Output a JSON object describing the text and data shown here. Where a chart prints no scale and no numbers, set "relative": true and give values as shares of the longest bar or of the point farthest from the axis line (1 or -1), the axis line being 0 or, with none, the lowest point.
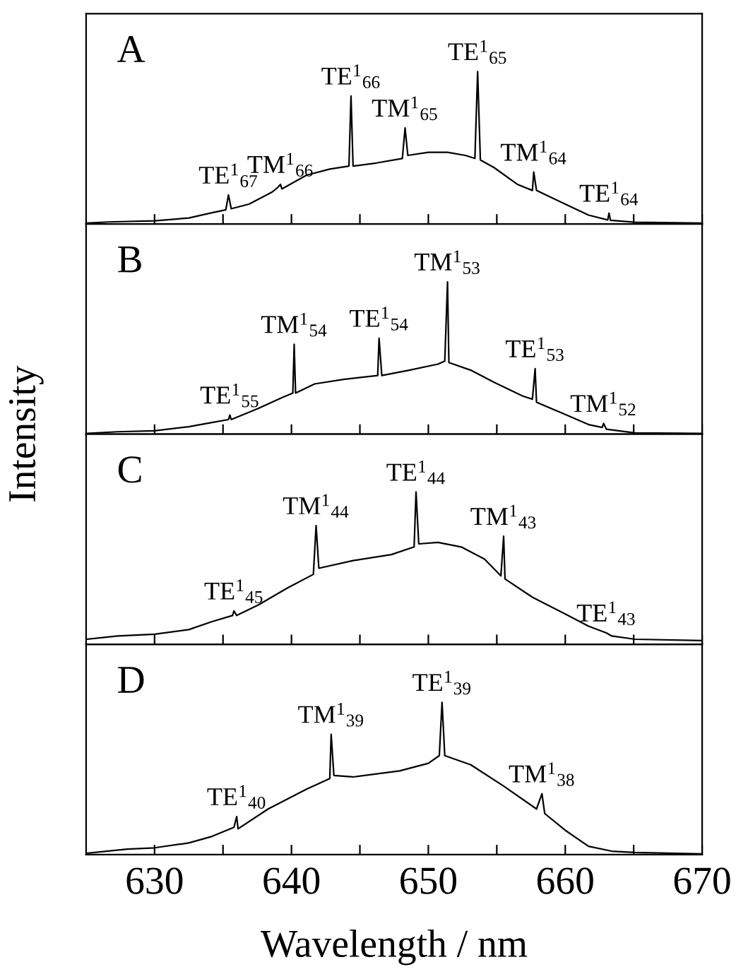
{
  "chart_data": [
    {
      "type": "line",
      "relative": true,
      "ylabel": "Intensity",
      "xlim": [
        625,
        670
      ],
      "tick_labels": false,
      "color": "#000000",
      "xticks": [
        630,
        {
          "value": 635,
          "label": null
        },
        640,
        {
          "value": 645,
          "label": null
        },
        650,
        {
          "value": 655,
          "label": null
        },
        660,
        {
          "value": 665,
          "label": null
        },
        670
      ],
      "x": [
        625.0,
        626.6,
        630.0,
        632.5,
        634.2,
        635.2,
        635.4,
        635.6,
        636.9,
        638.6,
        639.0,
        639.2,
        639.3,
        641.1,
        642.8,
        644.2,
        644.35,
        644.5,
        646.2,
        648.1,
        648.3,
        648.5,
        650.0,
        651.4,
        652.7,
        653.4,
        653.6,
        653.8,
        654.8,
        656.5,
        657.6,
        657.7,
        657.9,
        660.0,
        661.7,
        663.1,
        663.2,
        663.3,
        665.1,
        669.9
      ],
      "values": [
        0.005,
        0.013,
        0.021,
        0.039,
        0.074,
        0.092,
        0.19,
        0.1,
        0.13,
        0.21,
        0.24,
        0.26,
        0.23,
        0.32,
        0.36,
        0.38,
        0.84,
        0.38,
        0.4,
        0.43,
        0.63,
        0.45,
        0.47,
        0.47,
        0.45,
        0.43,
        1.0,
        0.42,
        0.37,
        0.26,
        0.22,
        0.34,
        0.22,
        0.13,
        0.058,
        0.026,
        0.071,
        0.024,
        0.011,
        0.005
      ],
      "annotations": [
        "A",
        {
          "text": "TE$^{1}$$_{67}$",
          "x": 635.4,
          "y": 0.19
        },
        {
          "text": "TM$^{1}$$_{66}$",
          "x": 639.2,
          "y": 0.26
        },
        {
          "text": "TE$^{1}$$_{66}$",
          "x": 644.35,
          "y": 0.84
        },
        {
          "text": "TM$^{1}$$_{65}$",
          "x": 648.3,
          "y": 0.63
        },
        {
          "text": "TE$^{1}$$_{65}$",
          "x": 653.6,
          "y": 1.0
        },
        {
          "text": "TM$^{1}$$_{64}$",
          "x": 657.7,
          "y": 0.34
        },
        {
          "text": "TE$^{1}$$_{64}$",
          "x": 663.2,
          "y": 0.071
        }
      ]
    },
    {
      "type": "line",
      "relative": true,
      "xlim": [
        625,
        670
      ],
      "tick_labels": false,
      "color": "#000000",
      "xticks": [
        630,
        {
          "value": 635,
          "label": null
        },
        640,
        {
          "value": 645,
          "label": null
        },
        650,
        {
          "value": 655,
          "label": null
        },
        660,
        {
          "value": 665,
          "label": null
        },
        670
      ],
      "x": [
        625.0,
        627.3,
        630.0,
        632.5,
        634.2,
        635.4,
        635.5,
        635.6,
        637.6,
        639.3,
        640.1,
        640.2,
        640.3,
        641.7,
        643.8,
        646.3,
        646.4,
        646.6,
        648.6,
        650.7,
        651.2,
        651.4,
        651.5,
        653.1,
        654.8,
        656.9,
        657.6,
        657.8,
        657.9,
        660.0,
        661.7,
        662.7,
        662.8,
        663.0,
        665.1,
        669.9
      ],
      "values": [
        0.005,
        0.016,
        0.022,
        0.049,
        0.077,
        0.096,
        0.126,
        0.096,
        0.17,
        0.24,
        0.27,
        0.59,
        0.27,
        0.33,
        0.36,
        0.385,
        0.63,
        0.385,
        0.42,
        0.46,
        0.48,
        1.0,
        0.47,
        0.42,
        0.34,
        0.25,
        0.23,
        0.43,
        0.21,
        0.13,
        0.063,
        0.044,
        0.071,
        0.033,
        0.008,
        0.005
      ],
      "annotations": [
        "B",
        {
          "text": "TE$^{1}$$_{55}$",
          "x": 635.5,
          "y": 0.126
        },
        {
          "text": "TM$^{1}$$_{54}$",
          "x": 640.2,
          "y": 0.59
        },
        {
          "text": "TE$^{1}$$_{54}$",
          "x": 646.4,
          "y": 0.63
        },
        {
          "text": "TM$^{1}$$_{53}$",
          "x": 651.4,
          "y": 1.0
        },
        {
          "text": "TE$^{1}$$_{53}$",
          "x": 657.8,
          "y": 0.43
        },
        {
          "text": "TM$^{1}$$_{52}$",
          "x": 662.8,
          "y": 0.071
        }
      ]
    },
    {
      "type": "line",
      "relative": true,
      "xlim": [
        625,
        670
      ],
      "tick_labels": false,
      "color": "#000000",
      "xticks": [
        630,
        {
          "value": 635,
          "label": null
        },
        640,
        {
          "value": 645,
          "label": null
        },
        650,
        {
          "value": 655,
          "label": null
        },
        660,
        {
          "value": 665,
          "label": null
        },
        670
      ],
      "x": [
        625.0,
        627.3,
        630.0,
        632.5,
        634.2,
        635.7,
        635.8,
        636.0,
        637.6,
        639.7,
        641.6,
        641.8,
        642.0,
        644.5,
        647.3,
        648.96,
        649.1,
        649.3,
        650.7,
        652.4,
        654.1,
        655.3,
        655.5,
        655.6,
        657.6,
        660.0,
        661.7,
        663.0,
        663.4,
        665.1,
        669.9
      ],
      "values": [
        0.034,
        0.055,
        0.067,
        0.097,
        0.15,
        0.19,
        0.22,
        0.19,
        0.26,
        0.37,
        0.46,
        0.78,
        0.5,
        0.55,
        0.59,
        0.64,
        1.0,
        0.66,
        0.67,
        0.64,
        0.56,
        0.45,
        0.71,
        0.43,
        0.31,
        0.2,
        0.12,
        0.076,
        0.055,
        0.034,
        0.025
      ],
      "annotations": [
        "C",
        {
          "text": "TE$^{1}$$_{45}$",
          "x": 635.8,
          "y": 0.22
        },
        {
          "text": "TM$^{1}$$_{44}$",
          "x": 641.8,
          "y": 0.78
        },
        {
          "text": "TE$^{1}$$_{44}$",
          "x": 649.1,
          "y": 1.0
        },
        {
          "text": "TM$^{1}$$_{43}$",
          "x": 655.5,
          "y": 0.71
        },
        {
          "text": "TE$^{1}$$_{43}$",
          "x": 663.0,
          "y": 0.076
        }
      ]
    },
    {
      "type": "line",
      "relative": true,
      "xlabel": "Wavelength / nm",
      "xlim": [
        625,
        670
      ],
      "tick_labels": "x",
      "color": "#000000",
      "xticks": [
        630,
        {
          "value": 635,
          "label": null
        },
        640,
        {
          "value": 645,
          "label": null
        },
        650,
        {
          "value": 655,
          "label": null
        },
        660,
        {
          "value": 665,
          "label": null
        },
        670
      ],
      "x": [
        625.0,
        628.0,
        630.0,
        632.5,
        634.2,
        635.8,
        636.0,
        636.1,
        638.3,
        641.1,
        642.8,
        642.9,
        643.1,
        644.5,
        647.9,
        650.0,
        650.8,
        651.0,
        651.2,
        653.1,
        655.5,
        657.9,
        658.3,
        658.5,
        660.0,
        661.7,
        663.4,
        665.1,
        669.9
      ],
      "values": [
        0.009,
        0.036,
        0.045,
        0.077,
        0.12,
        0.18,
        0.25,
        0.17,
        0.3,
        0.43,
        0.5,
        0.79,
        0.52,
        0.51,
        0.55,
        0.6,
        0.65,
        1.0,
        0.65,
        0.59,
        0.45,
        0.3,
        0.4,
        0.27,
        0.16,
        0.055,
        0.023,
        0.014,
        0.005
      ],
      "annotations": [
        "D",
        {
          "text": "TE$^{1}$$_{40}$",
          "x": 636.0,
          "y": 0.25
        },
        {
          "text": "TM$^{1}$$_{39}$",
          "x": 642.9,
          "y": 0.79
        },
        {
          "text": "TE$^{1}$$_{39}$",
          "x": 651.0,
          "y": 1.0
        },
        {
          "text": "TM$^{1}$$_{38}$",
          "x": 658.3,
          "y": 0.4
        }
      ]
    }
  ]
}
